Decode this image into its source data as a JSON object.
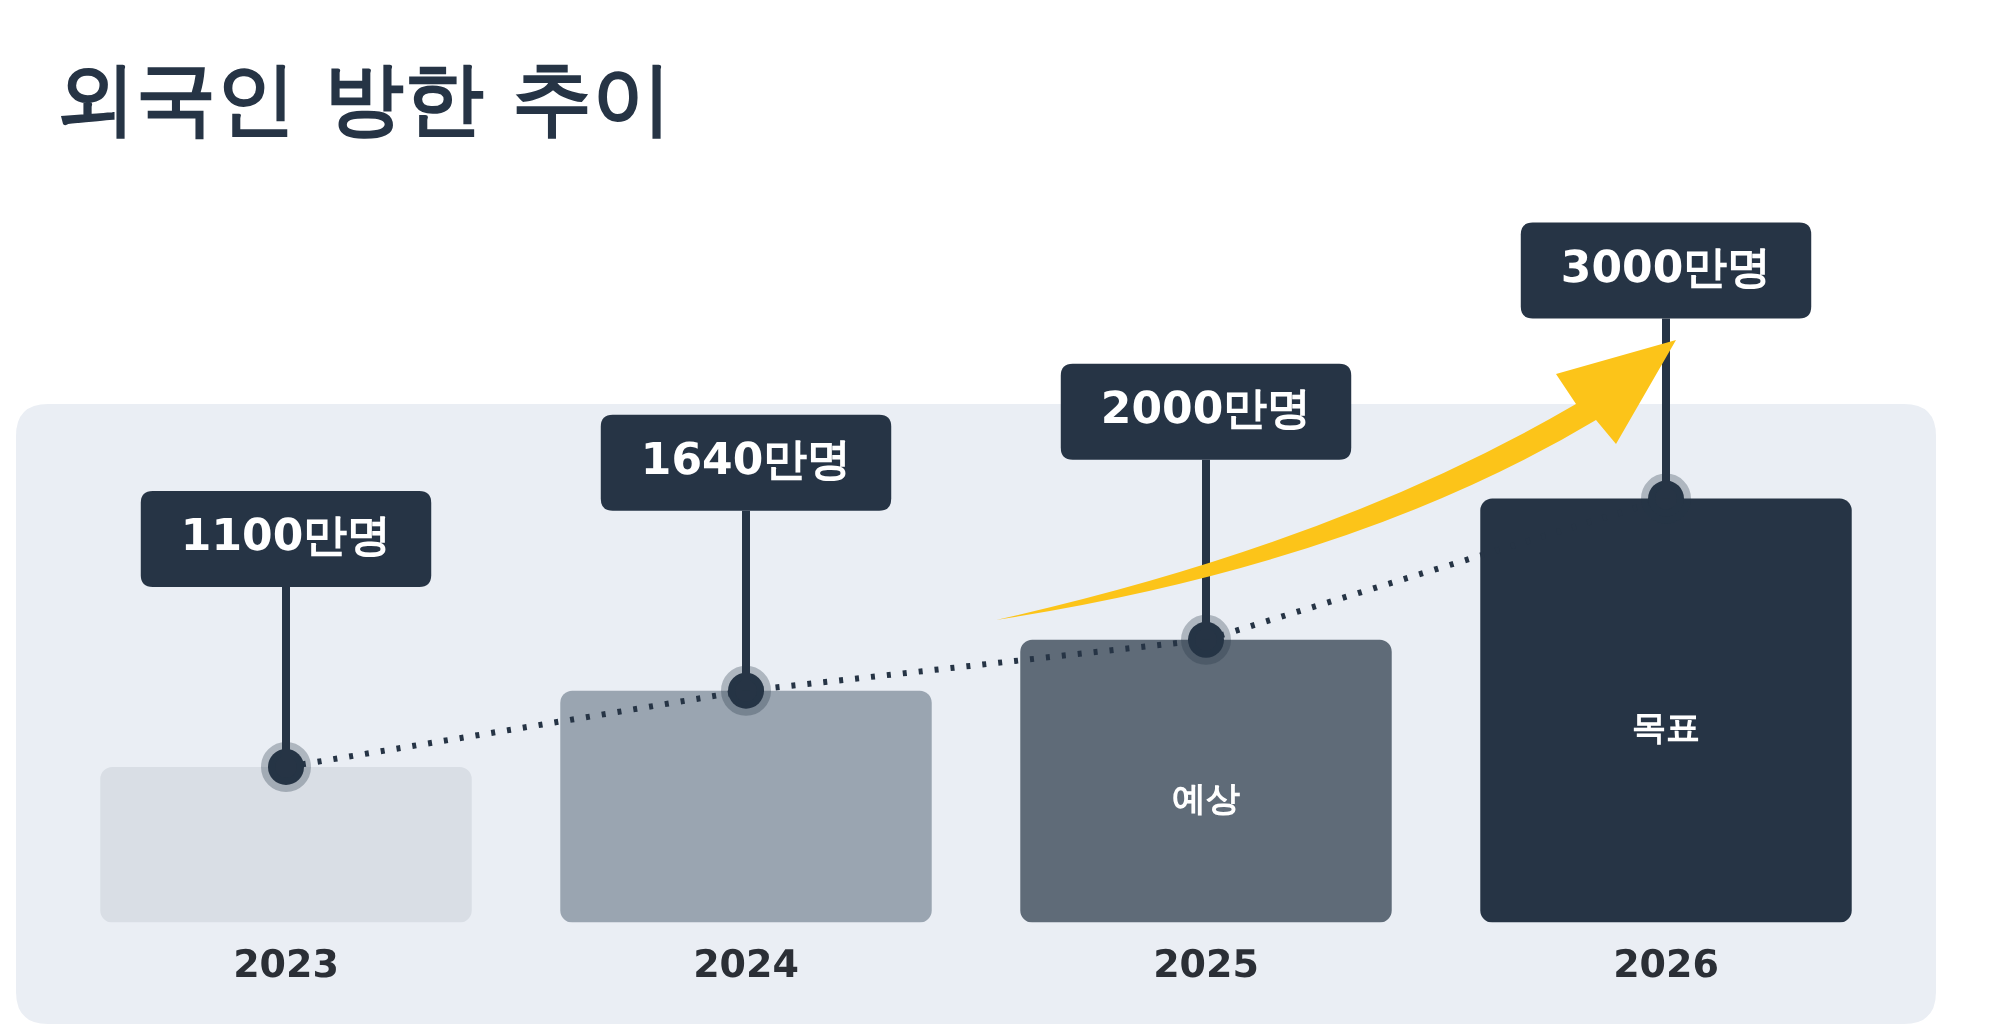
{
  "chart_data": {
    "type": "bar",
    "title": "외국인 방한 추이",
    "categories": [
      "2023",
      "2024",
      "2025",
      "2026"
    ],
    "series": [
      {
        "colors": [
          "#d9dee5",
          "#9aa5b1",
          "#5f6b78",
          "#263445"
        ],
        "values": [
          1100,
          1640,
          2000,
          3000
        ]
      },
      {
        "type": "line",
        "color": "#263445",
        "values": [
          1100,
          1640,
          2000,
          3000
        ],
        "value_labels": [
          "1100만명",
          "1640만명",
          "2000만명",
          "3000만명"
        ],
        "line_style": "dotted",
        "marker": "circle"
      }
    ],
    "annotations": [
      "예상",
      "목표"
    ],
    "grid": false,
    "legend": false
  }
}
